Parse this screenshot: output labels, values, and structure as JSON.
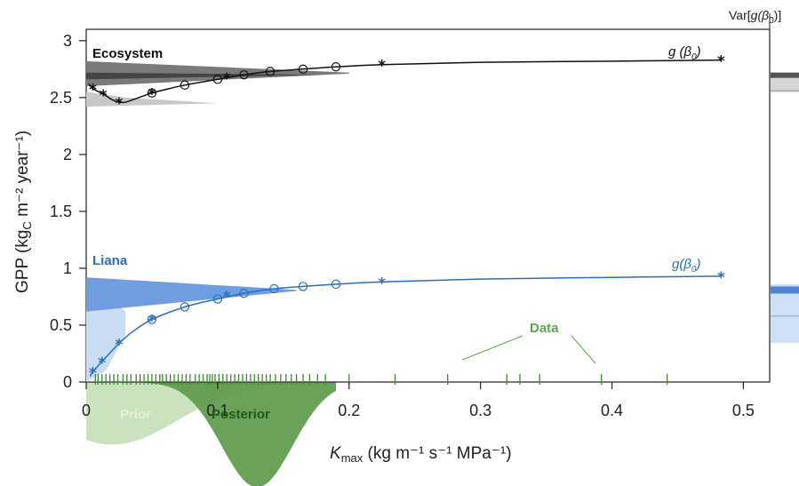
{
  "chart_data": {
    "type": "line",
    "xlabel": {
      "main": "K",
      "sub": "max",
      "units": " (kg m⁻¹ s⁻¹ MPa⁻¹)"
    },
    "ylabel": {
      "pre": "GPP (kg",
      "sub": "C",
      "post": " m⁻² year⁻¹)"
    },
    "xlim": [
      0,
      0.52
    ],
    "ylim": [
      0,
      3.1
    ],
    "xticks": [
      "0",
      "0.1",
      "0.2",
      "0.3",
      "0.4",
      "0.5"
    ],
    "yticks": [
      "0",
      "0.5",
      "1",
      "1.5",
      "2",
      "2.5",
      "3"
    ],
    "var_label": {
      "pre": "Var[",
      "g": "g",
      "beta": "(β",
      "zero": "0",
      "post": ")]"
    },
    "series": [
      {
        "name": "Ecosystem",
        "curve_label": "g(β₀)",
        "color": "#111111",
        "band_color": "#6e6e6e",
        "star_points": [
          [
            0.005,
            2.58
          ],
          [
            0.013,
            2.53
          ],
          [
            0.025,
            2.46
          ],
          [
            0.05,
            2.54
          ],
          [
            0.107,
            2.68
          ],
          [
            0.225,
            2.79
          ],
          [
            0.483,
            2.83
          ]
        ],
        "circle_points": [
          [
            0.05,
            2.54
          ],
          [
            0.075,
            2.61
          ],
          [
            0.1,
            2.66
          ],
          [
            0.12,
            2.7
          ],
          [
            0.14,
            2.73
          ],
          [
            0.165,
            2.75
          ],
          [
            0.19,
            2.77
          ]
        ],
        "curve": [
          [
            0.002,
            2.62
          ],
          [
            0.005,
            2.58
          ],
          [
            0.013,
            2.53
          ],
          [
            0.02,
            2.48
          ],
          [
            0.025,
            2.46
          ],
          [
            0.03,
            2.46
          ],
          [
            0.04,
            2.5
          ],
          [
            0.05,
            2.54
          ],
          [
            0.06,
            2.57
          ],
          [
            0.075,
            2.61
          ],
          [
            0.1,
            2.66
          ],
          [
            0.12,
            2.7
          ],
          [
            0.14,
            2.73
          ],
          [
            0.165,
            2.75
          ],
          [
            0.19,
            2.77
          ],
          [
            0.225,
            2.79
          ],
          [
            0.3,
            2.81
          ],
          [
            0.4,
            2.82
          ],
          [
            0.483,
            2.83
          ]
        ]
      },
      {
        "name": "Liana",
        "curve_label": "g(β₀)",
        "color": "#2a6ebb",
        "band_color": "#5b8fd6",
        "star_points": [
          [
            0.005,
            0.09
          ],
          [
            0.012,
            0.18
          ],
          [
            0.025,
            0.34
          ],
          [
            0.05,
            0.55
          ],
          [
            0.107,
            0.76
          ],
          [
            0.225,
            0.88
          ],
          [
            0.483,
            0.93
          ]
        ],
        "circle_points": [
          [
            0.05,
            0.55
          ],
          [
            0.075,
            0.66
          ],
          [
            0.1,
            0.73
          ],
          [
            0.12,
            0.78
          ],
          [
            0.143,
            0.82
          ],
          [
            0.165,
            0.84
          ],
          [
            0.19,
            0.86
          ]
        ],
        "curve": [
          [
            0.003,
            0.05
          ],
          [
            0.005,
            0.09
          ],
          [
            0.012,
            0.18
          ],
          [
            0.02,
            0.28
          ],
          [
            0.025,
            0.34
          ],
          [
            0.035,
            0.44
          ],
          [
            0.05,
            0.55
          ],
          [
            0.075,
            0.66
          ],
          [
            0.1,
            0.73
          ],
          [
            0.12,
            0.78
          ],
          [
            0.143,
            0.82
          ],
          [
            0.165,
            0.84
          ],
          [
            0.19,
            0.86
          ],
          [
            0.225,
            0.88
          ],
          [
            0.3,
            0.905
          ],
          [
            0.4,
            0.92
          ],
          [
            0.483,
            0.93
          ]
        ]
      }
    ],
    "distributions": [
      {
        "name": "Prior",
        "color": "#c7dfba",
        "label_color": "#e6f0de",
        "mean": 0.02,
        "sd": 0.05,
        "peak_scale": 2.2,
        "xrange": [
          0.0,
          0.19
        ]
      },
      {
        "name": "Posterior",
        "color": "#5e9a4c",
        "label_color": "#1f5a18",
        "mean": 0.13,
        "sd": 0.027,
        "peak_scale": 3.7,
        "xrange": [
          0.0,
          0.19
        ]
      }
    ],
    "data_label": {
      "text": "Data",
      "color": "#5aa84a"
    },
    "data_rug": [
      0.007,
      0.009,
      0.012,
      0.015,
      0.018,
      0.021,
      0.024,
      0.028,
      0.031,
      0.034,
      0.038,
      0.041,
      0.044,
      0.047,
      0.05,
      0.053,
      0.056,
      0.058,
      0.061,
      0.064,
      0.067,
      0.07,
      0.073,
      0.076,
      0.079,
      0.083,
      0.086,
      0.089,
      0.092,
      0.094,
      0.096,
      0.098,
      0.101,
      0.104,
      0.107,
      0.11,
      0.113,
      0.116,
      0.119,
      0.122,
      0.125,
      0.128,
      0.131,
      0.134,
      0.137,
      0.14,
      0.144,
      0.148,
      0.152,
      0.156,
      0.16,
      0.165,
      0.17,
      0.176,
      0.182,
      0.2,
      0.235,
      0.275,
      0.32,
      0.33,
      0.345,
      0.392,
      0.442
    ]
  }
}
